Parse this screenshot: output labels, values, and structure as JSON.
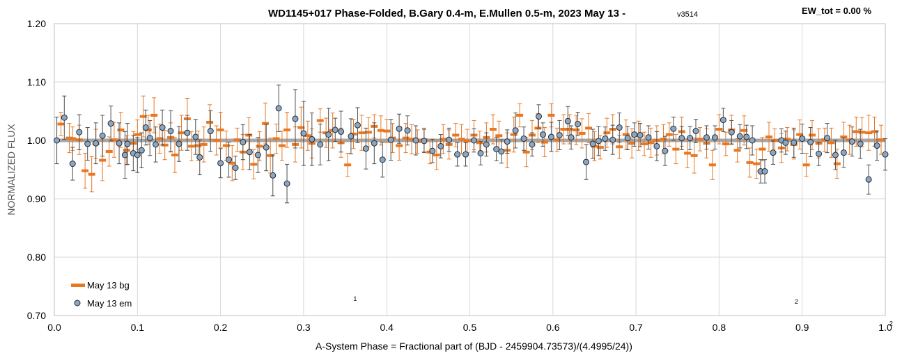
{
  "chart_data": {
    "type": "scatter",
    "title": "WD1145+017 Phase-Folded, B.Gary 0.4-m, E.Mullen 0.5-m, 2023 May 13 -",
    "version": "v3514",
    "annotation": "EW_tot = 0.00 %",
    "xlabel": "A-System Phase = Fractional part of (BJD - 2459904.73573)/(4.4995/24))",
    "ylabel": "NORMALIZED FLUX",
    "xlim": [
      0.0,
      1.0
    ],
    "ylim": [
      0.7,
      1.2
    ],
    "x_ticks": [
      "0.0",
      "0.1",
      "0.2",
      "0.3",
      "0.4",
      "0.5",
      "0.6",
      "0.7",
      "0.8",
      "0.9",
      "1.0"
    ],
    "y_ticks": [
      "0.70",
      "0.80",
      "0.90",
      "1.00",
      "1.10",
      "1.20"
    ],
    "grid": true,
    "legend_position": "bottom-left",
    "reference_line": 1.0,
    "phase_markers": [
      {
        "label": "1",
        "x": 0.362,
        "y": 0.725
      },
      {
        "label": "2",
        "x": 0.893,
        "y": 0.72
      },
      {
        "label": "2",
        "x": 1.007,
        "y": 0.683
      }
    ],
    "colors": {
      "bg": "#e87722",
      "em": "#8fa6bf",
      "em_edge": "#1f2b3a",
      "em_err": "#4d4d4d",
      "refline": "#a6a6a6",
      "grid": "#d9d9d9"
    },
    "series": [
      {
        "name": "May 13 bg",
        "marker": "dash",
        "x": [
          0.008,
          0.018,
          0.022,
          0.03,
          0.037,
          0.045,
          0.05,
          0.058,
          0.066,
          0.072,
          0.08,
          0.087,
          0.095,
          0.1,
          0.107,
          0.113,
          0.12,
          0.127,
          0.133,
          0.14,
          0.145,
          0.153,
          0.16,
          0.165,
          0.173,
          0.18,
          0.187,
          0.195,
          0.2,
          0.207,
          0.214,
          0.22,
          0.227,
          0.234,
          0.24,
          0.247,
          0.254,
          0.26,
          0.267,
          0.274,
          0.28,
          0.29,
          0.297,
          0.305,
          0.31,
          0.32,
          0.327,
          0.335,
          0.345,
          0.353,
          0.36,
          0.37,
          0.378,
          0.385,
          0.393,
          0.4,
          0.407,
          0.415,
          0.423,
          0.43,
          0.437,
          0.445,
          0.452,
          0.46,
          0.468,
          0.475,
          0.483,
          0.49,
          0.497,
          0.505,
          0.512,
          0.52,
          0.528,
          0.535,
          0.545,
          0.553,
          0.56,
          0.568,
          0.575,
          0.582,
          0.59,
          0.598,
          0.605,
          0.613,
          0.62,
          0.628,
          0.635,
          0.643,
          0.65,
          0.657,
          0.665,
          0.672,
          0.68,
          0.688,
          0.695,
          0.703,
          0.71,
          0.718,
          0.725,
          0.733,
          0.74,
          0.748,
          0.755,
          0.762,
          0.77,
          0.777,
          0.785,
          0.792,
          0.8,
          0.808,
          0.815,
          0.822,
          0.83,
          0.837,
          0.845,
          0.852,
          0.86,
          0.867,
          0.875,
          0.882,
          0.89,
          0.897,
          0.905,
          0.912,
          0.92,
          0.927,
          0.935,
          0.942,
          0.95,
          0.957,
          0.965,
          0.972,
          0.98,
          0.987,
          0.995
        ],
        "y": [
          1.028,
          1.004,
          1.003,
          1.001,
          0.948,
          0.942,
          0.994,
          0.966,
          0.981,
          1.001,
          1.018,
          0.983,
          0.995,
          1.01,
          1.041,
          1.018,
          1.043,
          1.003,
          0.992,
          1.005,
          0.975,
          1.013,
          1.037,
          0.99,
          0.991,
          0.993,
          1.031,
          1.0,
          1.018,
          0.991,
          0.961,
          1.001,
          0.98,
          1.009,
          0.959,
          0.99,
          1.029,
          0.974,
          1.003,
          0.991,
          1.018,
          0.993,
          1.022,
          1.008,
          0.995,
          1.034,
          1.013,
          1.017,
          0.996,
          0.958,
          1.011,
          1.013,
          1.014,
          1.024,
          1.017,
          1.016,
          1.004,
          0.991,
          1.004,
          1.002,
          0.998,
          1.001,
          0.98,
          0.975,
          1.002,
          0.993,
          1.009,
          1.002,
          0.999,
          1.009,
          0.996,
          1.005,
          1.019,
          1.008,
          0.983,
          1.01,
          1.043,
          0.98,
          1.009,
          1.021,
          0.997,
          1.043,
          1.001,
          1.019,
          1.019,
          1.018,
          1.012,
          1.021,
          0.99,
          0.988,
          1.013,
          1.019,
          0.989,
          1.01,
          0.995,
          1.008,
          0.994,
          0.996,
          1.0,
          1.002,
          1.01,
          0.985,
          1.015,
          0.978,
          0.974,
          1.002,
          0.995,
          0.958,
          1.019,
          0.994,
          1.018,
          0.983,
          1.017,
          0.962,
          0.96,
          0.985,
          1.006,
          1.0,
          0.987,
          1.002,
          0.993,
          1.01,
          0.958,
          1.009,
          0.995,
          1.001,
          0.996,
          0.96,
          1.006,
          1.001,
          1.015,
          1.014,
          1.013,
          1.015,
          1.001
        ],
        "err": [
          0.02,
          0.025,
          0.02,
          0.025,
          0.03,
          0.03,
          0.025,
          0.035,
          0.025,
          0.03,
          0.03,
          0.025,
          0.02,
          0.025,
          0.035,
          0.025,
          0.03,
          0.025,
          0.025,
          0.025,
          0.03,
          0.03,
          0.035,
          0.025,
          0.025,
          0.03,
          0.03,
          0.025,
          0.03,
          0.025,
          0.03,
          0.02,
          0.03,
          0.03,
          0.025,
          0.025,
          0.035,
          0.03,
          0.025,
          0.025,
          0.03,
          0.03,
          0.035,
          0.025,
          0.025,
          0.02,
          0.025,
          0.03,
          0.025,
          0.02,
          0.025,
          0.03,
          0.025,
          0.02,
          0.025,
          0.02,
          0.025,
          0.025,
          0.025,
          0.025,
          0.02,
          0.02,
          0.02,
          0.025,
          0.025,
          0.025,
          0.02,
          0.025,
          0.02,
          0.025,
          0.02,
          0.025,
          0.025,
          0.025,
          0.03,
          0.03,
          0.02,
          0.025,
          0.025,
          0.025,
          0.025,
          0.02,
          0.02,
          0.025,
          0.025,
          0.025,
          0.025,
          0.025,
          0.025,
          0.02,
          0.025,
          0.025,
          0.02,
          0.025,
          0.025,
          0.025,
          0.02,
          0.025,
          0.025,
          0.025,
          0.02,
          0.025,
          0.025,
          0.025,
          0.03,
          0.02,
          0.025,
          0.025,
          0.025,
          0.02,
          0.025,
          0.02,
          0.025,
          0.025,
          0.025,
          0.02,
          0.025,
          0.02,
          0.025,
          0.02,
          0.025,
          0.025,
          0.02,
          0.025,
          0.025,
          0.02,
          0.025,
          0.025,
          0.025,
          0.025,
          0.025,
          0.025,
          0.03,
          0.025,
          0.025
        ]
      },
      {
        "name": "May 13 em",
        "marker": "circle",
        "x": [
          0.003,
          0.012,
          0.022,
          0.03,
          0.04,
          0.05,
          0.058,
          0.068,
          0.078,
          0.085,
          0.088,
          0.095,
          0.1,
          0.105,
          0.11,
          0.115,
          0.122,
          0.13,
          0.14,
          0.15,
          0.16,
          0.17,
          0.175,
          0.188,
          0.2,
          0.21,
          0.218,
          0.227,
          0.235,
          0.245,
          0.255,
          0.263,
          0.27,
          0.28,
          0.29,
          0.3,
          0.31,
          0.32,
          0.33,
          0.338,
          0.345,
          0.357,
          0.365,
          0.375,
          0.385,
          0.395,
          0.405,
          0.415,
          0.425,
          0.435,
          0.445,
          0.455,
          0.465,
          0.475,
          0.485,
          0.495,
          0.505,
          0.513,
          0.52,
          0.532,
          0.538,
          0.545,
          0.555,
          0.565,
          0.575,
          0.583,
          0.588,
          0.598,
          0.608,
          0.618,
          0.622,
          0.63,
          0.64,
          0.648,
          0.655,
          0.663,
          0.672,
          0.68,
          0.69,
          0.698,
          0.705,
          0.715,
          0.725,
          0.735,
          0.745,
          0.755,
          0.765,
          0.772,
          0.785,
          0.795,
          0.805,
          0.815,
          0.825,
          0.833,
          0.84,
          0.85,
          0.855,
          0.865,
          0.875,
          0.88,
          0.89,
          0.9,
          0.91,
          0.92,
          0.93,
          0.94,
          0.95,
          0.96,
          0.97,
          0.98,
          0.99,
          1.0
        ],
        "y": [
          1.0,
          1.039,
          0.96,
          1.014,
          0.994,
          0.995,
          1.008,
          1.029,
          0.995,
          0.975,
          0.994,
          0.978,
          0.975,
          0.983,
          1.022,
          1.004,
          0.993,
          1.022,
          1.016,
          0.994,
          1.013,
          1.006,
          0.971,
          1.016,
          0.961,
          0.967,
          0.953,
          0.997,
          0.98,
          0.975,
          0.988,
          0.94,
          1.055,
          0.926,
          1.037,
          1.012,
          1.002,
          0.993,
          1.01,
          1.018,
          1.015,
          1.007,
          1.026,
          0.986,
          0.995,
          0.967,
          1.001,
          1.02,
          1.017,
          1.0,
          0.999,
          0.982,
          0.99,
          1.001,
          0.976,
          0.976,
          1.0,
          0.978,
          0.993,
          0.985,
          0.981,
          0.998,
          1.017,
          1.003,
          0.993,
          1.041,
          1.01,
          1.006,
          1.009,
          1.033,
          1.005,
          1.028,
          0.963,
          0.994,
          0.999,
          1.003,
          1.001,
          1.022,
          1.004,
          1.01,
          1.009,
          1.005,
          0.99,
          0.982,
          1.02,
          1.004,
          1.004,
          1.016,
          1.005,
          1.005,
          1.035,
          1.014,
          1.007,
          1.006,
          1.0,
          0.947,
          0.947,
          0.979,
          1.0,
          0.996,
          0.996,
          1.003,
          0.997,
          0.977,
          1.004,
          0.975,
          0.979,
          0.998,
          0.994,
          0.933,
          0.991,
          0.976
        ],
        "err": [
          0.04,
          0.037,
          0.028,
          0.03,
          0.028,
          0.035,
          0.035,
          0.03,
          0.035,
          0.04,
          0.035,
          0.03,
          0.03,
          0.03,
          0.03,
          0.03,
          0.03,
          0.03,
          0.035,
          0.03,
          0.03,
          0.03,
          0.03,
          0.035,
          0.025,
          0.03,
          0.02,
          0.03,
          0.03,
          0.03,
          0.04,
          0.035,
          0.04,
          0.033,
          0.05,
          0.055,
          0.045,
          0.035,
          0.045,
          0.02,
          0.035,
          0.03,
          0.03,
          0.035,
          0.035,
          0.03,
          0.035,
          0.025,
          0.025,
          0.025,
          0.02,
          0.02,
          0.02,
          0.02,
          0.02,
          0.02,
          0.02,
          0.02,
          0.02,
          0.02,
          0.02,
          0.02,
          0.03,
          0.02,
          0.02,
          0.02,
          0.02,
          0.025,
          0.025,
          0.025,
          0.02,
          0.02,
          0.03,
          0.025,
          0.025,
          0.02,
          0.025,
          0.025,
          0.02,
          0.02,
          0.02,
          0.02,
          0.025,
          0.025,
          0.02,
          0.02,
          0.02,
          0.02,
          0.02,
          0.02,
          0.02,
          0.02,
          0.02,
          0.02,
          0.025,
          0.02,
          0.02,
          0.02,
          0.02,
          0.02,
          0.025,
          0.025,
          0.025,
          0.02,
          0.025,
          0.025,
          0.025,
          0.025,
          0.025,
          0.025,
          0.025,
          0.027
        ]
      }
    ]
  }
}
